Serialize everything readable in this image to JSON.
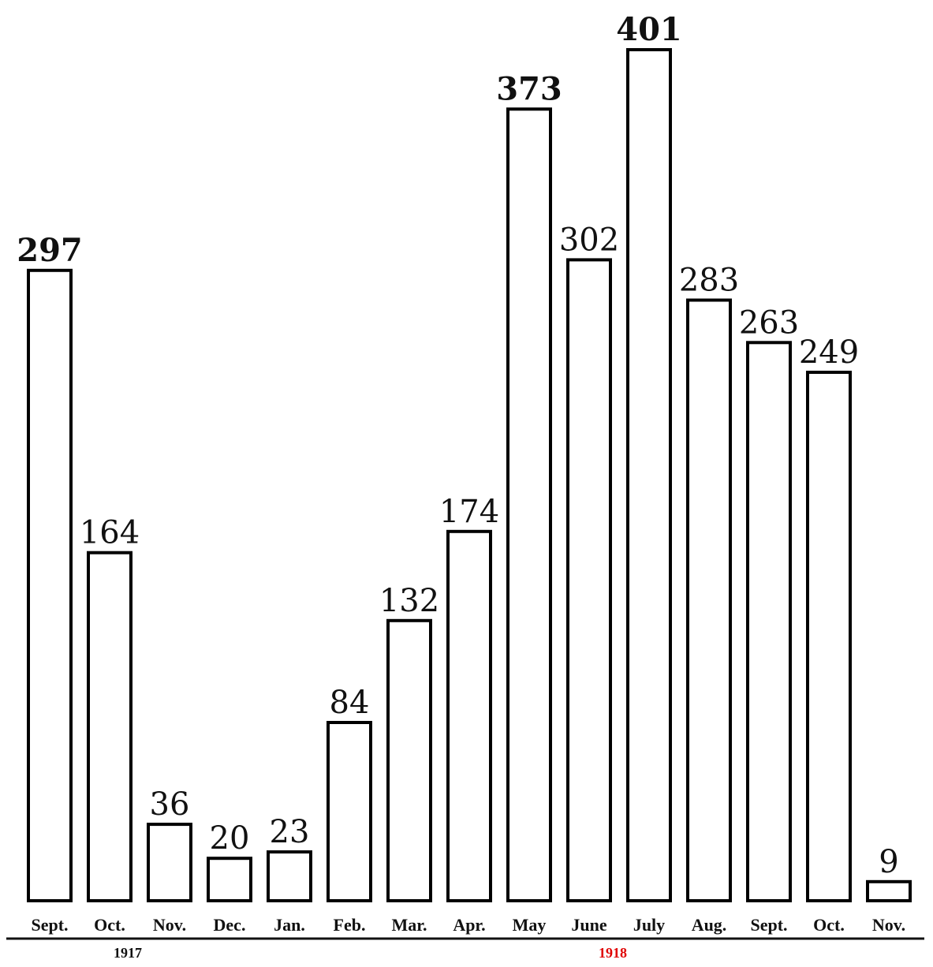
{
  "chart_data": {
    "type": "bar",
    "title": "",
    "xlabel": "",
    "ylabel": "",
    "ylim": [
      0,
      401
    ],
    "grid": false,
    "categories": [
      "Sept.",
      "Oct.",
      "Nov.",
      "Dec.",
      "Jan.",
      "Feb.",
      "Mar.",
      "Apr.",
      "May",
      "June",
      "July",
      "Aug.",
      "Sept.",
      "Oct.",
      "Nov."
    ],
    "values": [
      297,
      164,
      36,
      20,
      23,
      84,
      132,
      174,
      373,
      302,
      401,
      283,
      263,
      249,
      9
    ],
    "value_labels": [
      "297",
      "164",
      "36",
      "20",
      "23",
      "84",
      "132",
      "174",
      "373",
      "302",
      "401",
      "283",
      "263",
      "249",
      "9"
    ],
    "emphasized_labels": [
      0,
      8,
      10
    ],
    "year_groups": [
      {
        "label": "1917",
        "color": "#111111",
        "under_category": 1
      },
      {
        "label": "1918",
        "color": "#e00000",
        "under_category": 9
      }
    ]
  }
}
